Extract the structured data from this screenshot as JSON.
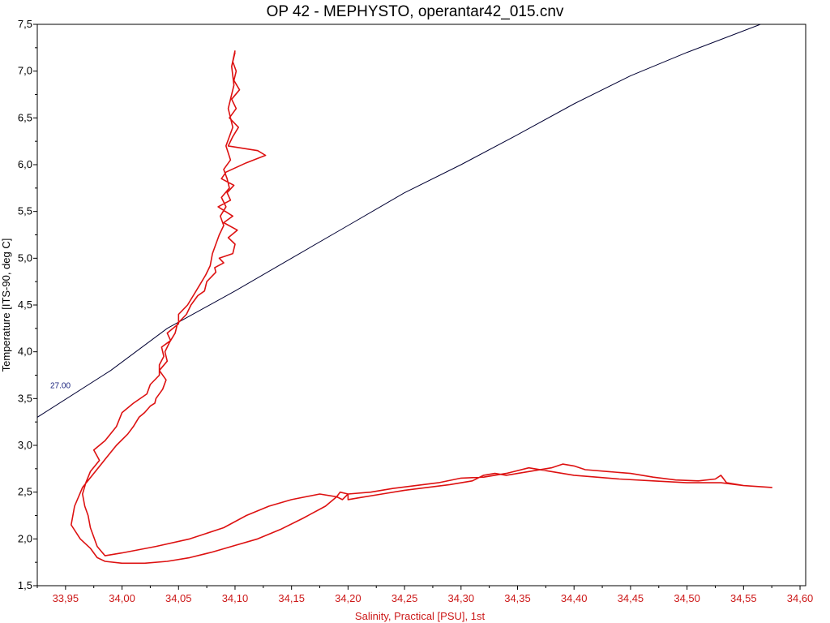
{
  "chart_data": {
    "type": "line",
    "title": "OP 42 - MEPHYSTO, operantar42_015.cnv",
    "xlabel": "Salinity, Practical [PSU], 1st",
    "ylabel": "Temperature [ITS-90, deg C]",
    "xlim": [
      33.925,
      34.605
    ],
    "ylim": [
      1.5,
      7.5
    ],
    "x_ticks": [
      "33,95",
      "34,00",
      "34,05",
      "34,10",
      "34,15",
      "34,20",
      "34,25",
      "34,30",
      "34,35",
      "34,40",
      "34,45",
      "34,50",
      "34,55",
      "34,60"
    ],
    "x_tick_values": [
      33.95,
      34.0,
      34.05,
      34.1,
      34.15,
      34.2,
      34.25,
      34.3,
      34.35,
      34.4,
      34.45,
      34.5,
      34.55,
      34.6
    ],
    "y_ticks": [
      "1,5",
      "2,0",
      "2,5",
      "3,0",
      "3,5",
      "4,0",
      "4,5",
      "5,0",
      "5,5",
      "6,0",
      "6,5",
      "7,0",
      "7,5"
    ],
    "y_tick_values": [
      1.5,
      2.0,
      2.5,
      3.0,
      3.5,
      4.0,
      4.5,
      5.0,
      5.5,
      6.0,
      6.5,
      7.0,
      7.5
    ],
    "grid": false,
    "colors": {
      "profile": "#dd1111",
      "contour": "#000033",
      "x_axis_text": "#cc1818",
      "y_axis_text": "#000000"
    },
    "contours": [
      {
        "label": "27.00",
        "x": [
          33.925,
          33.99,
          34.04,
          34.1,
          34.15,
          34.2,
          34.25,
          34.3,
          34.35,
          34.4,
          34.45,
          34.5,
          34.565
        ],
        "y": [
          3.3,
          3.8,
          4.25,
          4.65,
          5.0,
          5.35,
          5.7,
          6.0,
          6.32,
          6.65,
          6.95,
          7.2,
          7.5
        ]
      }
    ],
    "series": [
      {
        "x": [
          34.1,
          34.098,
          34.101,
          34.099,
          34.104,
          34.097,
          34.101,
          34.095,
          34.103,
          34.098,
          34.094,
          34.12,
          34.127,
          34.11,
          34.092,
          34.088,
          34.099,
          34.093,
          34.096,
          34.085,
          34.098,
          34.09,
          34.102,
          34.094,
          34.1,
          34.098,
          34.086,
          34.09,
          34.082,
          34.083,
          34.075,
          34.073,
          34.067,
          34.061,
          34.057,
          34.049,
          34.047,
          34.042,
          34.038,
          34.04,
          34.033,
          34.039,
          34.036,
          34.03,
          34.029,
          34.025,
          34.02,
          34.015,
          34.01,
          34.005,
          33.995,
          33.985,
          33.975,
          33.965,
          33.958,
          33.955,
          33.963,
          33.972,
          33.978,
          33.985,
          34.0,
          34.02,
          34.04,
          34.06,
          34.08,
          34.1,
          34.12,
          34.14,
          34.16,
          34.18,
          34.19,
          34.193,
          34.2,
          34.2,
          34.21,
          34.23,
          34.25,
          34.27,
          34.29,
          34.31,
          34.32,
          34.33,
          34.34,
          34.36,
          34.38,
          34.39,
          34.4,
          34.41,
          34.43,
          34.45,
          34.47,
          34.49,
          34.51,
          34.525,
          34.53,
          34.535,
          34.55,
          34.575,
          34.55,
          34.53,
          34.5,
          34.47,
          34.44,
          34.42,
          34.4,
          34.38,
          34.36,
          34.34,
          34.32,
          34.3,
          34.28,
          34.26,
          34.24,
          34.22,
          34.2,
          34.195,
          34.19,
          34.175,
          34.15,
          34.13,
          34.11,
          34.09,
          34.06,
          34.03,
          34.0,
          33.985,
          33.978,
          33.975,
          33.972,
          33.97,
          33.967,
          33.965,
          33.968,
          33.972,
          33.98,
          33.975,
          33.985,
          33.995,
          34.0,
          34.01,
          34.022,
          34.025,
          34.033,
          34.033,
          34.037,
          34.035,
          34.043,
          34.04,
          34.05,
          34.05,
          34.058,
          34.063,
          34.068,
          34.074,
          34.078,
          34.08,
          34.083,
          34.086,
          34.09,
          34.087,
          34.092,
          34.088,
          34.095,
          34.093,
          34.09,
          34.096,
          34.092,
          34.098,
          34.094,
          34.099,
          34.097,
          34.1
        ],
        "y": [
          7.2,
          7.1,
          7.0,
          6.9,
          6.8,
          6.7,
          6.6,
          6.5,
          6.4,
          6.3,
          6.2,
          6.15,
          6.1,
          6.02,
          5.92,
          5.85,
          5.78,
          5.7,
          5.62,
          5.55,
          5.45,
          5.38,
          5.3,
          5.22,
          5.15,
          5.05,
          5.0,
          4.95,
          4.9,
          4.85,
          4.75,
          4.65,
          4.6,
          4.5,
          4.4,
          4.3,
          4.2,
          4.1,
          4.0,
          3.9,
          3.8,
          3.7,
          3.6,
          3.5,
          3.45,
          3.42,
          3.35,
          3.3,
          3.2,
          3.12,
          3.0,
          2.85,
          2.7,
          2.55,
          2.35,
          2.15,
          2.0,
          1.9,
          1.8,
          1.76,
          1.74,
          1.74,
          1.76,
          1.8,
          1.86,
          1.93,
          2.0,
          2.1,
          2.22,
          2.35,
          2.45,
          2.5,
          2.48,
          2.42,
          2.44,
          2.48,
          2.52,
          2.55,
          2.58,
          2.62,
          2.68,
          2.7,
          2.68,
          2.72,
          2.76,
          2.8,
          2.78,
          2.74,
          2.72,
          2.7,
          2.66,
          2.63,
          2.62,
          2.64,
          2.68,
          2.6,
          2.57,
          2.55,
          2.57,
          2.6,
          2.6,
          2.62,
          2.64,
          2.66,
          2.68,
          2.72,
          2.76,
          2.7,
          2.66,
          2.65,
          2.6,
          2.57,
          2.54,
          2.5,
          2.48,
          2.42,
          2.45,
          2.48,
          2.42,
          2.35,
          2.25,
          2.12,
          2.0,
          1.92,
          1.85,
          1.82,
          1.92,
          2.02,
          2.12,
          2.25,
          2.35,
          2.48,
          2.6,
          2.72,
          2.84,
          2.95,
          3.05,
          3.2,
          3.35,
          3.45,
          3.55,
          3.65,
          3.75,
          3.86,
          3.95,
          4.05,
          4.12,
          4.2,
          4.3,
          4.4,
          4.5,
          4.6,
          4.7,
          4.82,
          4.92,
          5.05,
          5.15,
          5.25,
          5.35,
          5.45,
          5.55,
          5.65,
          5.75,
          5.85,
          5.95,
          6.05,
          6.2,
          6.4,
          6.6,
          6.85,
          7.05,
          7.22
        ]
      }
    ]
  }
}
